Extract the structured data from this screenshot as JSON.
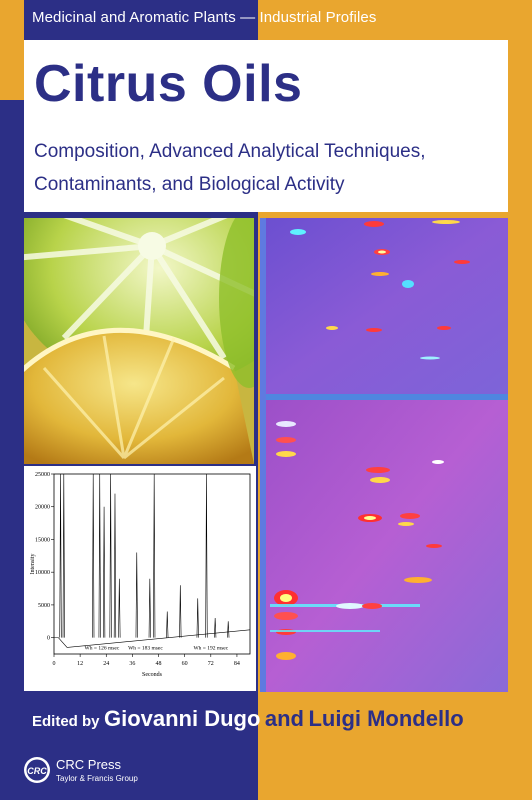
{
  "series": "Medicinal and Aromatic Plants — Industrial Profiles",
  "title": "Citrus Oils",
  "subtitle_line1": "Composition, Advanced Analytical Techniques,",
  "subtitle_line2": "Contaminants, and Biological Activity",
  "editors": {
    "prefix": "Edited by",
    "editor1": "Giovanni Dugo",
    "conjunction": "and",
    "editor2": "Luigi Mondello"
  },
  "publisher": {
    "logo_text": "CRC",
    "name": "CRC Press",
    "group": "Taylor & Francis Group"
  },
  "chart_data": {
    "type": "line",
    "title": "",
    "xlabel": "Seconds",
    "ylabel": "Intensity",
    "xlim": [
      0,
      90
    ],
    "ylim": [
      -2500,
      25000
    ],
    "x_ticks": [
      "0",
      "12",
      "24",
      "36",
      "48",
      "60",
      "72",
      "84"
    ],
    "y_ticks": [
      "0",
      "5000",
      "10000",
      "15000",
      "20000",
      "25000"
    ],
    "peaks": [
      {
        "x": 3,
        "y": 25000
      },
      {
        "x": 4.5,
        "y": 25000
      },
      {
        "x": 18,
        "y": 25000
      },
      {
        "x": 21,
        "y": 25000
      },
      {
        "x": 23,
        "y": 20000
      },
      {
        "x": 26,
        "y": 25000
      },
      {
        "x": 28,
        "y": 22000
      },
      {
        "x": 30,
        "y": 9000
      },
      {
        "x": 38,
        "y": 13000
      },
      {
        "x": 44,
        "y": 9000
      },
      {
        "x": 46,
        "y": 25000
      },
      {
        "x": 52,
        "y": 4000
      },
      {
        "x": 58,
        "y": 8000
      },
      {
        "x": 66,
        "y": 6000
      },
      {
        "x": 70,
        "y": 25000
      },
      {
        "x": 74,
        "y": 3000
      },
      {
        "x": 80,
        "y": 2500
      }
    ],
    "annotations": [
      "Wh = 126 msec",
      "Wh = 183 msec",
      "Wh = 192 msec"
    ],
    "grid": false
  },
  "colors": {
    "navy": "#2c2f86",
    "gold": "#e9a62f",
    "white": "#ffffff"
  }
}
